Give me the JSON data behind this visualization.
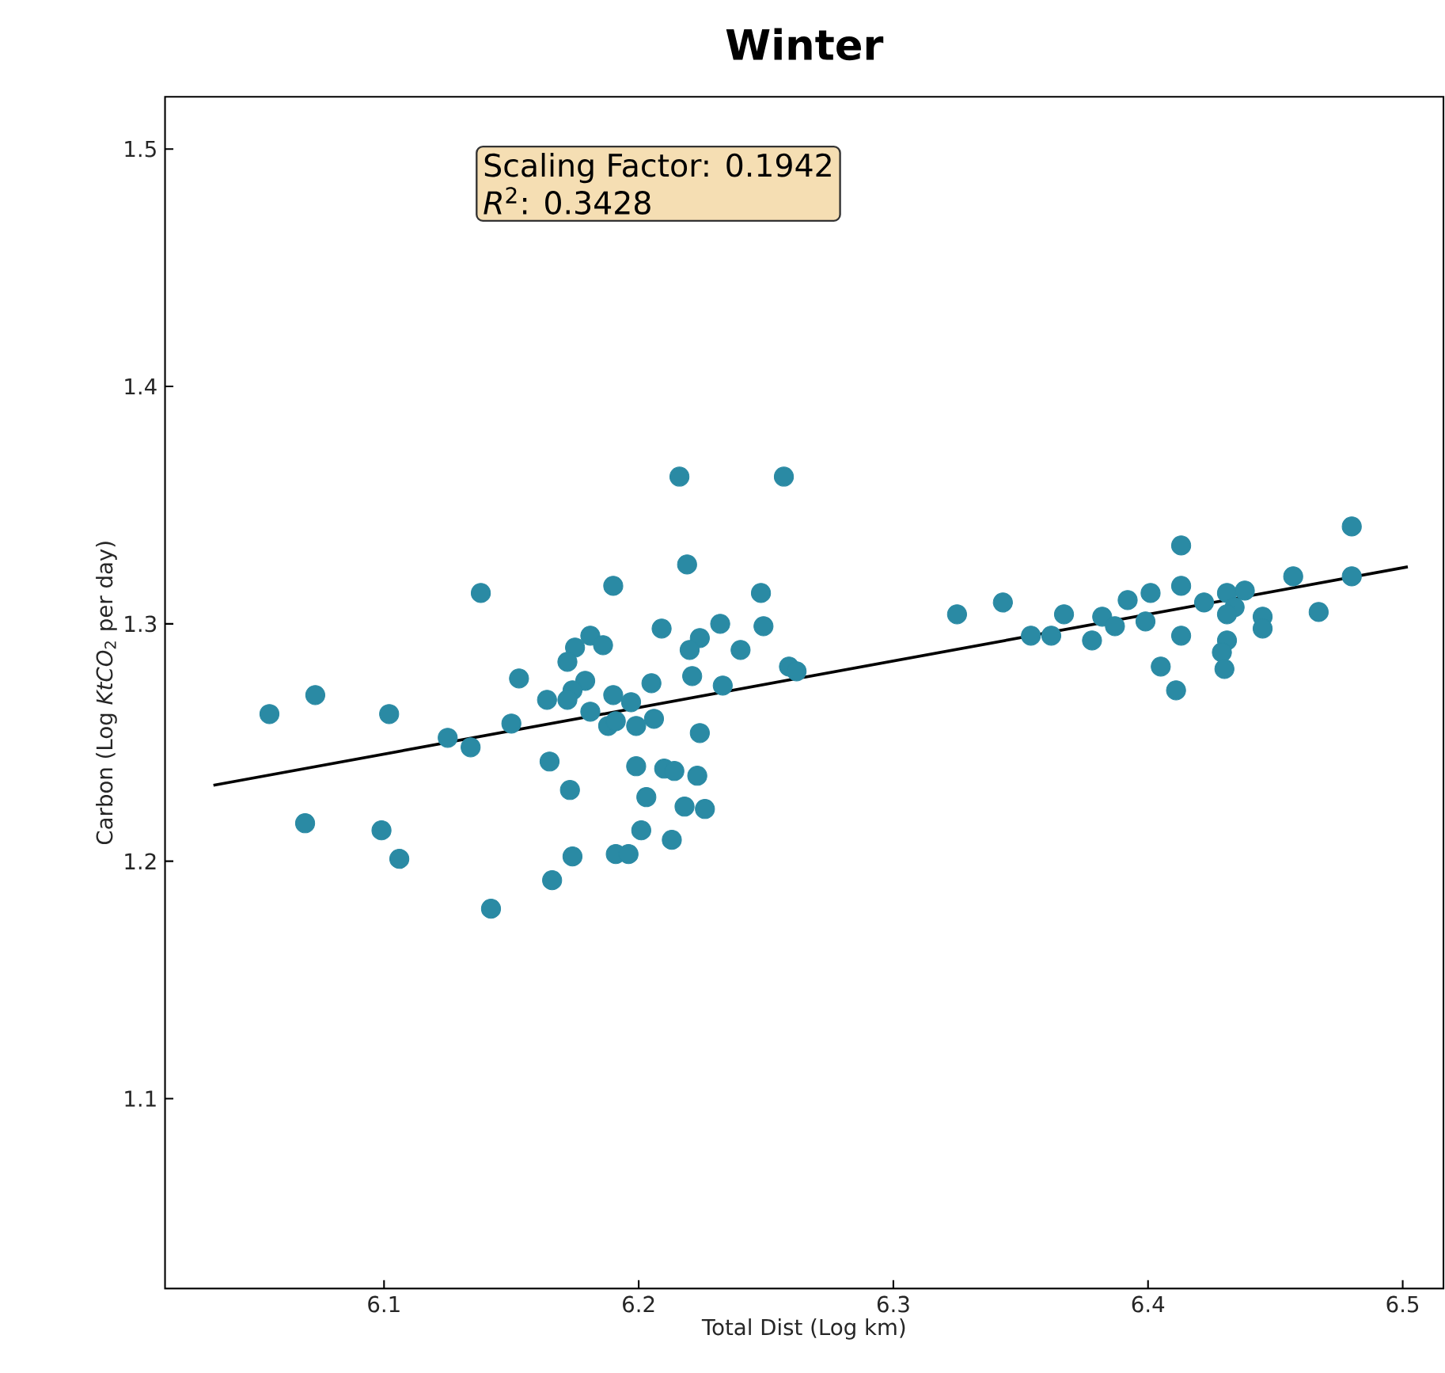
{
  "chart_data": {
    "type": "scatter",
    "title": "Winter",
    "xlabel": "Total Dist (Log km)",
    "ylabel": "Carbon (Log *KtCO*$_{2}$ per day)",
    "annotations": [
      "Scaling Factor:  0.1942",
      "*R*$^{2}$: 0.3428"
    ],
    "xlim": [
      6.014,
      6.516
    ],
    "ylim": [
      1.02,
      1.522
    ],
    "xticks": [
      6.1,
      6.2,
      6.3,
      6.4,
      6.5
    ],
    "yticks": [
      1.1,
      1.2,
      1.3,
      1.4,
      1.5
    ],
    "series": [
      {
        "color": "#2a8aa4",
        "marker": "circle",
        "x": [
          6.055,
          6.073,
          6.069,
          6.102,
          6.099,
          6.106,
          6.125,
          6.134,
          6.138,
          6.142,
          6.15,
          6.153,
          6.164,
          6.165,
          6.166,
          6.216,
          6.257,
          6.219,
          6.19,
          6.248,
          6.209,
          6.232,
          6.249,
          6.181,
          6.175,
          6.186,
          6.224,
          6.22,
          6.24,
          6.172,
          6.259,
          6.262,
          6.221,
          6.179,
          6.205,
          6.233,
          6.174,
          6.172,
          6.19,
          6.197,
          6.181,
          6.206,
          6.188,
          6.191,
          6.199,
          6.224,
          6.199,
          6.21,
          6.214,
          6.223,
          6.173,
          6.203,
          6.218,
          6.226,
          6.201,
          6.213,
          6.174,
          6.191,
          6.196,
          6.325,
          6.343,
          6.354,
          6.362,
          6.367,
          6.378,
          6.382,
          6.387,
          6.392,
          6.399,
          6.401,
          6.413,
          6.413,
          6.413,
          6.405,
          6.411,
          6.422,
          6.431,
          6.438,
          6.434,
          6.431,
          6.445,
          6.445,
          6.431,
          6.429,
          6.43,
          6.457,
          6.467,
          6.48,
          6.48
        ],
        "values": [
          1.262,
          1.27,
          1.216,
          1.262,
          1.213,
          1.201,
          1.252,
          1.248,
          1.313,
          1.18,
          1.258,
          1.277,
          1.268,
          1.242,
          1.192,
          1.362,
          1.362,
          1.325,
          1.316,
          1.313,
          1.298,
          1.3,
          1.299,
          1.295,
          1.29,
          1.291,
          1.294,
          1.289,
          1.289,
          1.284,
          1.282,
          1.28,
          1.278,
          1.276,
          1.275,
          1.274,
          1.272,
          1.268,
          1.27,
          1.267,
          1.263,
          1.26,
          1.257,
          1.259,
          1.257,
          1.254,
          1.24,
          1.239,
          1.238,
          1.236,
          1.23,
          1.227,
          1.223,
          1.222,
          1.213,
          1.209,
          1.202,
          1.203,
          1.203,
          1.304,
          1.309,
          1.295,
          1.295,
          1.304,
          1.293,
          1.303,
          1.299,
          1.31,
          1.301,
          1.313,
          1.333,
          1.316,
          1.295,
          1.282,
          1.272,
          1.309,
          1.313,
          1.314,
          1.307,
          1.304,
          1.303,
          1.298,
          1.293,
          1.288,
          1.281,
          1.32,
          1.305,
          1.341,
          1.32
        ]
      },
      {
        "type": "line",
        "color": "#000000",
        "marker": "none",
        "x": [
          6.033,
          6.502
        ],
        "values": [
          1.232,
          1.324
        ]
      }
    ]
  }
}
